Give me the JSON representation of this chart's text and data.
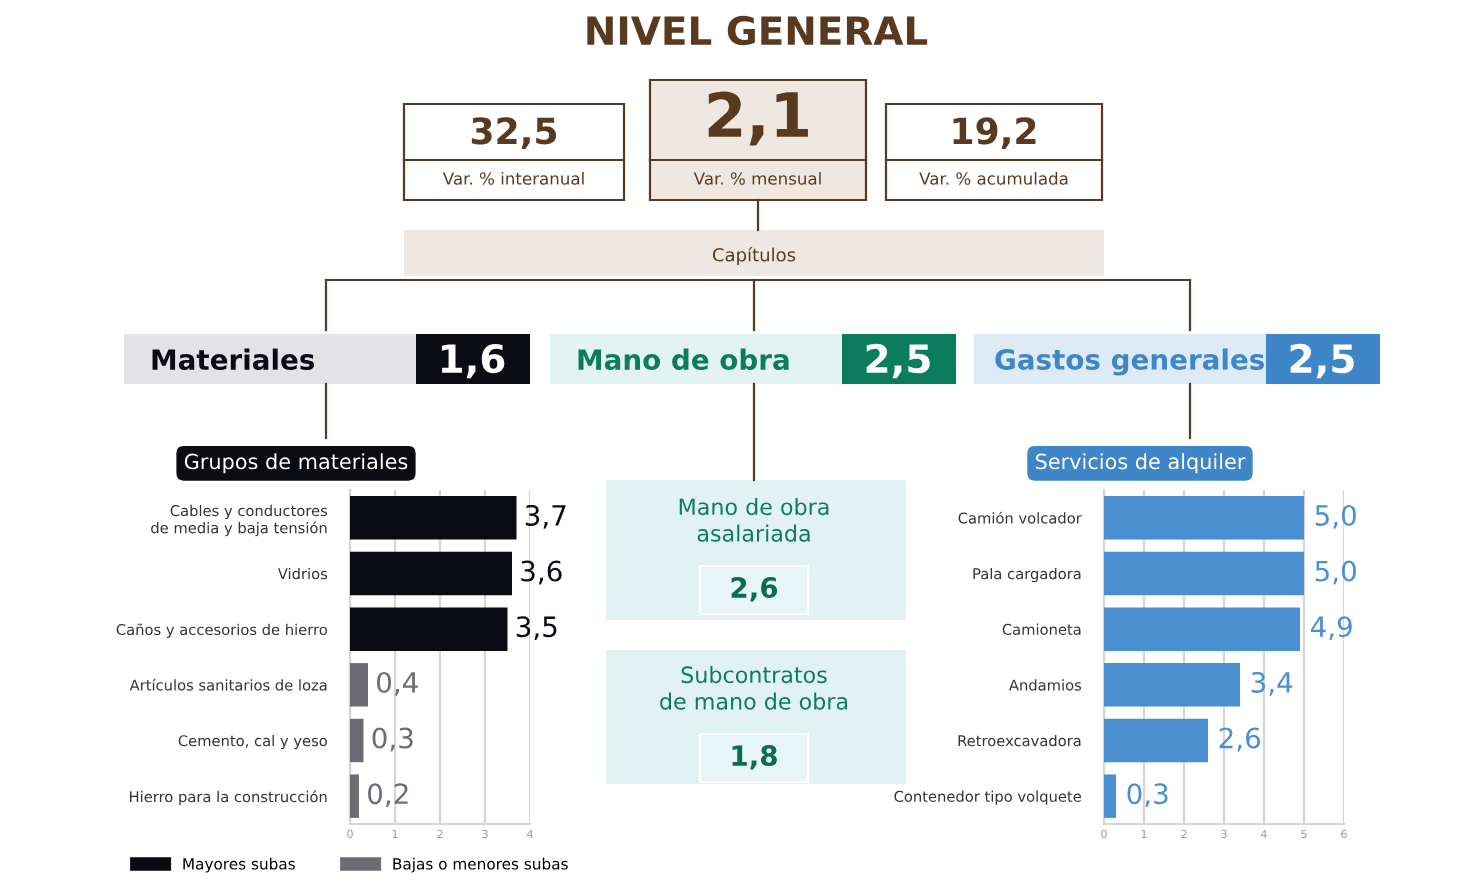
{
  "chart_data": [
    {
      "type": "other",
      "title": "NIVEL GENERAL",
      "annotations": [
        "32,5",
        "Var. % interanual",
        "2,1",
        "Var. % mensual",
        "19,2",
        "Var. % acumulada",
        "Capítulos",
        "Materiales",
        "1,6",
        "Mano de obra",
        "2,5",
        "Gastos generales",
        "2,5",
        "Mano de obra\nasalariada",
        "2,6",
        "Subcontratos\nde mano de obra",
        "1,8"
      ]
    },
    {
      "type": "bar",
      "orientation": "horizontal",
      "stacked": true,
      "title": "Grupos de materiales",
      "categories": [
        "Cables y conductores\nde media y baja tensión",
        "Vidrios",
        "Caños y accesorios de hierro",
        "Artículos sanitarios de loza",
        "Cemento, cal y yeso",
        "Hierro para la construcción"
      ],
      "series": [
        {
          "name": "Mayores subas",
          "color": "#0b0b16",
          "values": [
            3.7,
            3.6,
            3.5,
            null,
            null,
            null
          ],
          "value_labels": [
            "3,7",
            "3,6",
            "3,5",
            null,
            null,
            null
          ]
        },
        {
          "name": "Bajas o menores subas",
          "color": "#6d6b75",
          "values": [
            null,
            null,
            null,
            0.4,
            0.3,
            0.2
          ],
          "value_labels": [
            null,
            null,
            null,
            "0,4",
            "0,3",
            "0,2"
          ]
        }
      ],
      "xlim": [
        0,
        4
      ],
      "xticks": [
        0,
        1,
        2,
        3,
        4
      ],
      "grid": "x",
      "legend": "bottom"
    },
    {
      "type": "bar",
      "orientation": "horizontal",
      "title": "Servicios de alquiler",
      "categories": [
        "Camión volcador",
        "Pala cargadora",
        "Camioneta",
        "Andamios",
        "Retroexcavadora",
        "Contenedor tipo volquete"
      ],
      "series": [
        {
          "color": "#4a8fd0",
          "values": [
            5.0,
            5.0,
            4.9,
            3.4,
            2.6,
            0.3
          ],
          "value_labels": [
            "5,0",
            "5,0",
            "4,9",
            "3,4",
            "2,6",
            "0,3"
          ]
        }
      ],
      "xlim": [
        0,
        6
      ],
      "xticks": [
        0,
        1,
        2,
        3,
        4,
        5,
        6
      ],
      "grid": "x"
    }
  ]
}
